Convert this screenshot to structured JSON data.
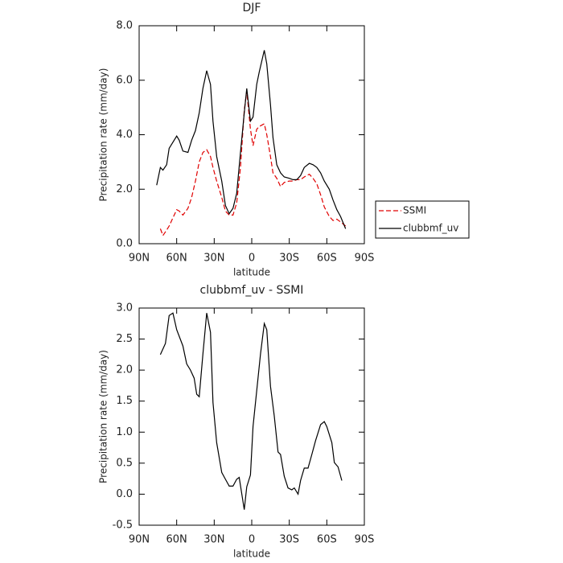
{
  "chart_data": [
    {
      "type": "line",
      "title": "DJF",
      "xlabel": "latitude",
      "ylabel": "Precipitation rate (mm/day)",
      "x": [
        76,
        73,
        71,
        68,
        66,
        60,
        58,
        55,
        51,
        48,
        45,
        42,
        39,
        36,
        33,
        31,
        28,
        24,
        21,
        18,
        15,
        12,
        9,
        6,
        4,
        1,
        -1,
        -4,
        -6,
        -10,
        -12,
        -15,
        -17,
        -20,
        -23,
        -26,
        -30,
        -33,
        -36,
        -39,
        -42,
        -46,
        -49,
        -52,
        -55,
        -58,
        -62,
        -65,
        -68,
        -71,
        -75
      ],
      "series": [
        {
          "name": "SSMI",
          "color": "#e00000",
          "linestyle": "dashed",
          "values": [
            null,
            0.55,
            0.3,
            0.5,
            0.65,
            1.25,
            1.2,
            1.05,
            1.3,
            1.7,
            2.3,
            3.0,
            3.35,
            3.45,
            3.2,
            2.8,
            2.3,
            1.7,
            1.2,
            1.05,
            1.05,
            1.5,
            2.8,
            4.9,
            5.6,
            4.2,
            3.6,
            4.2,
            4.3,
            4.4,
            4.0,
            3.2,
            2.6,
            2.4,
            2.1,
            2.25,
            2.3,
            2.3,
            2.35,
            2.35,
            2.45,
            2.55,
            2.4,
            2.2,
            1.8,
            1.35,
            1.0,
            0.85,
            0.9,
            0.8,
            0.65
          ]
        },
        {
          "name": "clubbmf_uv",
          "color": "#000000",
          "linestyle": "solid",
          "values": [
            2.15,
            2.8,
            2.7,
            2.9,
            3.5,
            3.95,
            3.8,
            3.4,
            3.35,
            3.8,
            4.15,
            4.8,
            5.7,
            6.35,
            5.85,
            4.5,
            3.2,
            2.3,
            1.4,
            1.1,
            1.3,
            1.85,
            3.35,
            4.8,
            5.7,
            4.5,
            4.65,
            5.85,
            6.3,
            7.1,
            6.6,
            5.1,
            3.9,
            2.9,
            2.6,
            2.45,
            2.4,
            2.35,
            2.35,
            2.5,
            2.8,
            2.95,
            2.9,
            2.8,
            2.6,
            2.3,
            2.0,
            1.6,
            1.25,
            1.0,
            0.55
          ]
        }
      ],
      "xlim": [
        90,
        -90
      ],
      "xticks": [
        {
          "value": 90,
          "label": "90N"
        },
        {
          "value": 60,
          "label": "60N"
        },
        {
          "value": 30,
          "label": "30N"
        },
        0,
        {
          "value": -30,
          "label": "30S"
        },
        {
          "value": -60,
          "label": "60S"
        },
        {
          "value": -90,
          "label": "90S"
        }
      ],
      "ylim": [
        0,
        8
      ],
      "yticks": [
        {
          "value": 0,
          "label": "0.0"
        },
        {
          "value": 2,
          "label": "2.0"
        },
        {
          "value": 4,
          "label": "4.0"
        },
        {
          "value": 6,
          "label": "6.0"
        },
        {
          "value": 8,
          "label": "8.0"
        }
      ],
      "legend": "outside-right"
    },
    {
      "type": "line",
      "title": "clubbmf_uv - SSMI",
      "xlabel": "latitude",
      "ylabel": "Precipitation rate (mm/day)",
      "x": [
        73,
        69,
        66,
        63,
        60,
        55,
        52,
        49,
        46,
        44,
        42,
        39,
        36,
        33,
        31,
        28,
        24,
        21,
        18,
        15,
        12,
        10,
        6,
        4,
        1,
        -1,
        -5,
        -7,
        -10,
        -12,
        -15,
        -18,
        -21,
        -23,
        -26,
        -29,
        -32,
        -34,
        -37,
        -39,
        -42,
        -45,
        -48,
        -51,
        -55,
        -58,
        -60,
        -64,
        -66,
        -69,
        -72
      ],
      "series": [
        {
          "name": "clubbmf_uv - SSMI",
          "color": "#000000",
          "linestyle": "solid",
          "values": [
            2.25,
            2.43,
            2.88,
            2.92,
            2.65,
            2.39,
            2.1,
            2.0,
            1.87,
            1.61,
            1.57,
            2.26,
            2.92,
            2.61,
            1.48,
            0.83,
            0.35,
            0.24,
            0.13,
            0.13,
            0.24,
            0.27,
            -0.25,
            0.12,
            0.31,
            1.09,
            1.87,
            2.26,
            2.75,
            2.65,
            1.74,
            1.26,
            0.68,
            0.64,
            0.29,
            0.1,
            0.07,
            0.1,
            0.0,
            0.22,
            0.42,
            0.42,
            0.64,
            0.86,
            1.12,
            1.17,
            1.09,
            0.83,
            0.51,
            0.44,
            0.22
          ]
        }
      ],
      "xlim": [
        90,
        -90
      ],
      "xticks": [
        {
          "value": 90,
          "label": "90N"
        },
        {
          "value": 60,
          "label": "60N"
        },
        {
          "value": 30,
          "label": "30N"
        },
        0,
        {
          "value": -30,
          "label": "30S"
        },
        {
          "value": -60,
          "label": "60S"
        },
        {
          "value": -90,
          "label": "90S"
        }
      ],
      "ylim": [
        -0.5,
        3
      ],
      "yticks": [
        -0.5,
        {
          "value": 0,
          "label": "0.0"
        },
        0.5,
        {
          "value": 1,
          "label": "1.0"
        },
        1.5,
        {
          "value": 2,
          "label": "2.0"
        },
        2.5,
        {
          "value": 3,
          "label": "3.0"
        }
      ]
    }
  ]
}
